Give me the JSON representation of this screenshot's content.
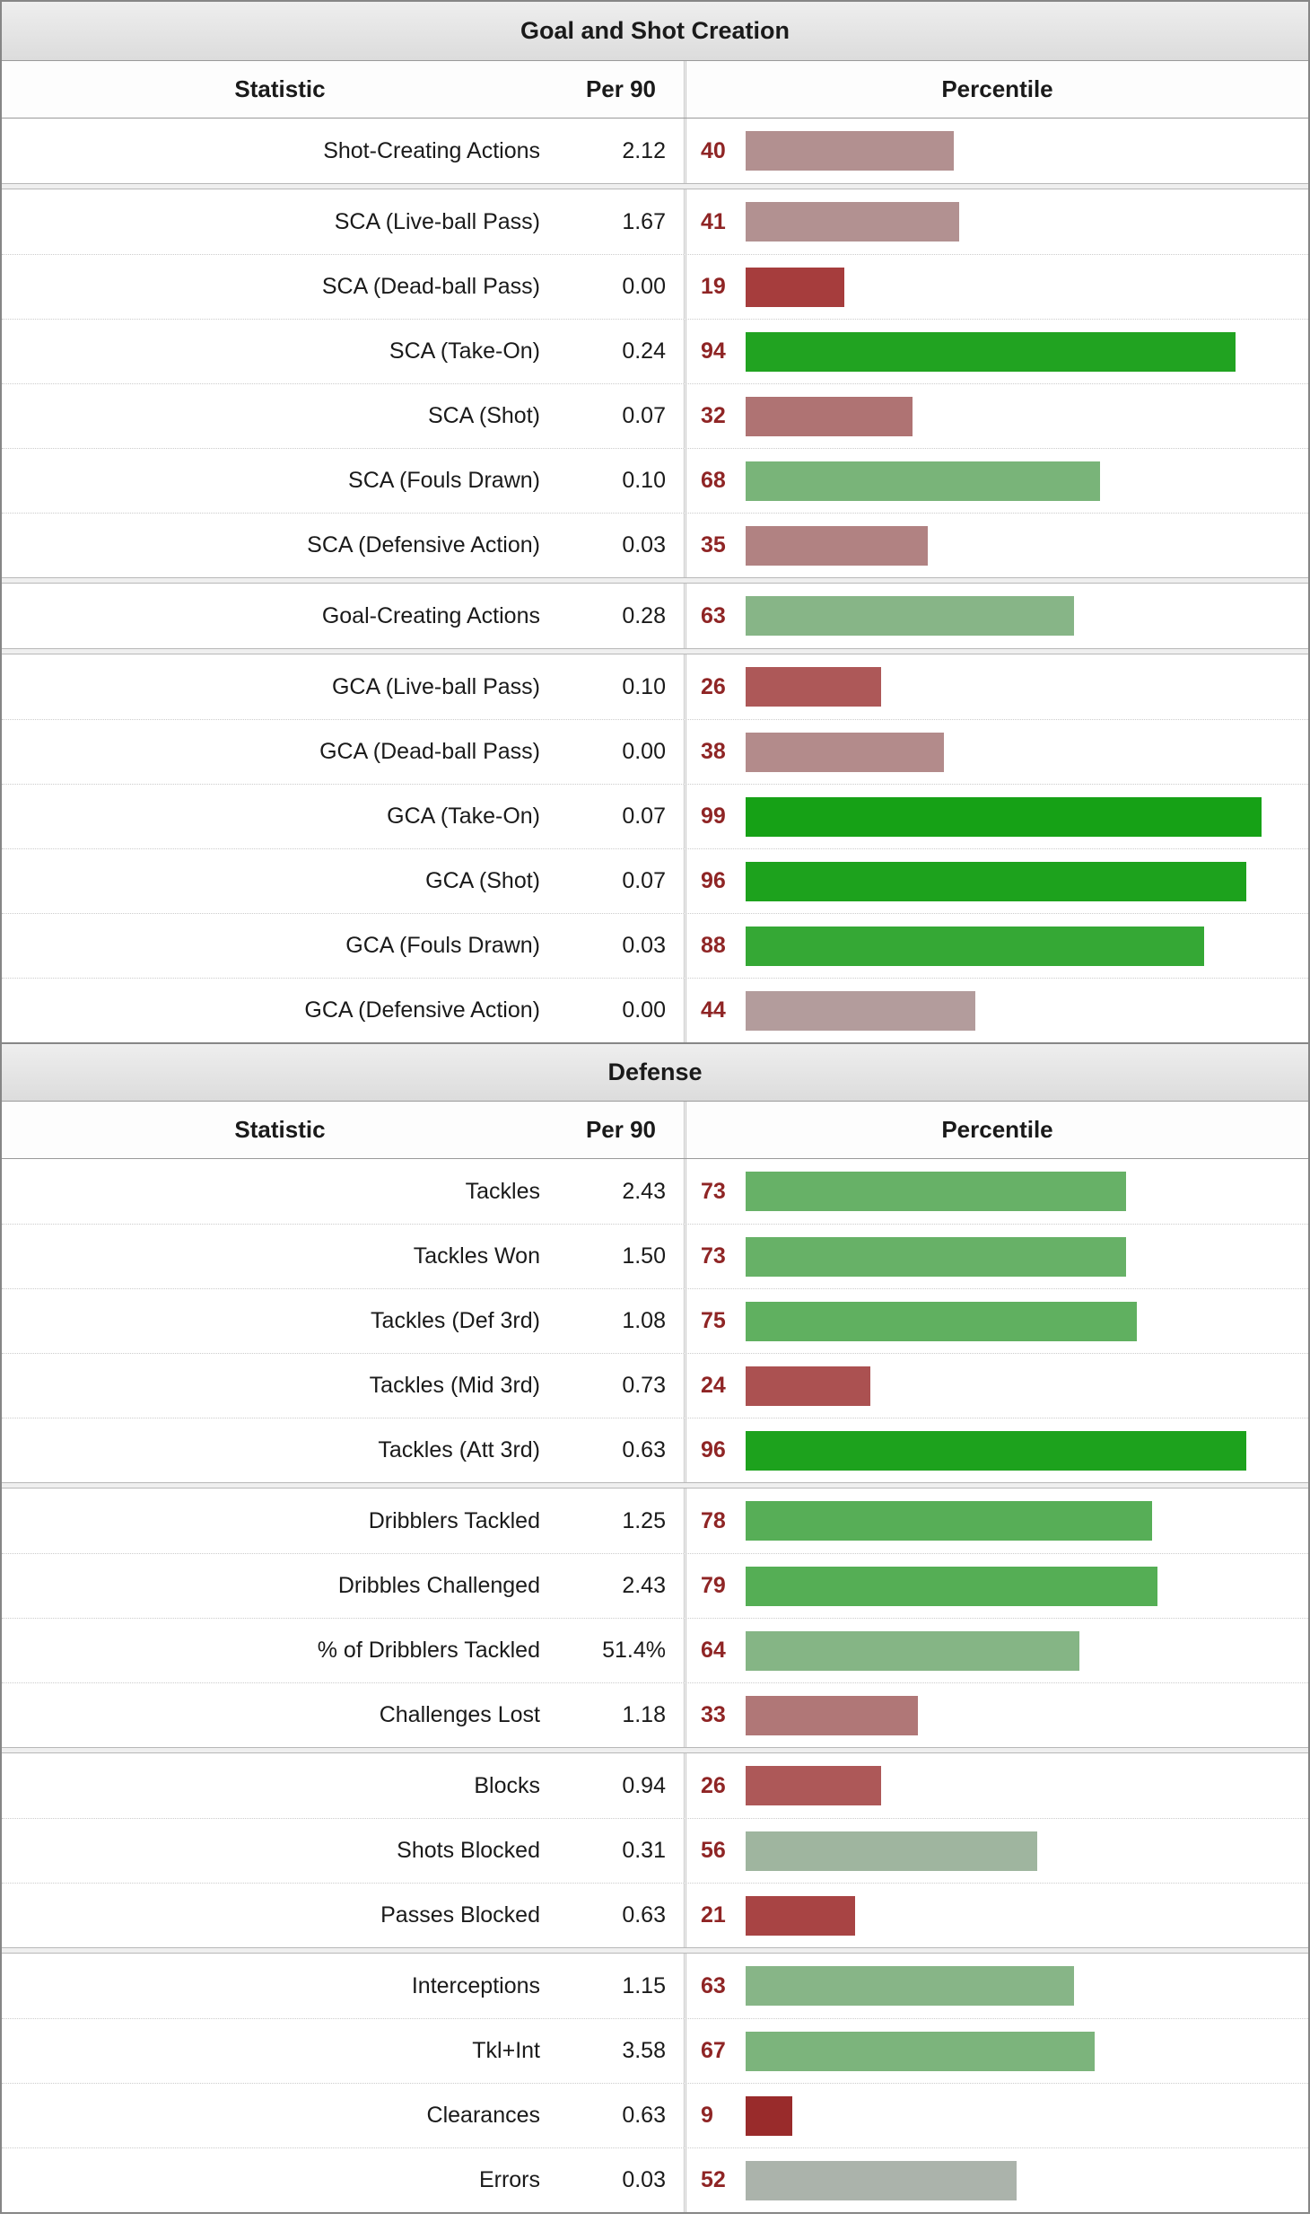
{
  "colors": {
    "percentile_number": "#8f2525",
    "title_bar_bg": "#e4e4e4",
    "board_border": "#868686"
  },
  "sections": [
    {
      "title": "Goal and Shot Creation",
      "columns": {
        "stat": "Statistic",
        "per90": "Per 90",
        "percentile": "Percentile"
      },
      "groups": [
        {
          "rows": [
            {
              "stat": "Shot-Creating Actions",
              "per90": "2.12",
              "percentile": 40,
              "color": "#b29090"
            }
          ]
        },
        {
          "rows": [
            {
              "stat": "SCA (Live-ball Pass)",
              "per90": "1.67",
              "percentile": 41,
              "color": "#b29191"
            },
            {
              "stat": "SCA (Dead-ball Pass)",
              "per90": "0.00",
              "percentile": 19,
              "color": "#a63d3d"
            },
            {
              "stat": "SCA (Take-On)",
              "per90": "0.24",
              "percentile": 94,
              "color": "#21a321"
            },
            {
              "stat": "SCA (Shot)",
              "per90": "0.07",
              "percentile": 32,
              "color": "#af7373"
            },
            {
              "stat": "SCA (Fouls Drawn)",
              "per90": "0.10",
              "percentile": 68,
              "color": "#79b479"
            },
            {
              "stat": "SCA (Defensive Action)",
              "per90": "0.03",
              "percentile": 35,
              "color": "#b18282"
            }
          ]
        },
        {
          "rows": [
            {
              "stat": "Goal-Creating Actions",
              "per90": "0.28",
              "percentile": 63,
              "color": "#87b587"
            }
          ]
        },
        {
          "rows": [
            {
              "stat": "GCA (Live-ball Pass)",
              "per90": "0.10",
              "percentile": 26,
              "color": "#ad5858"
            },
            {
              "stat": "GCA (Dead-ball Pass)",
              "per90": "0.00",
              "percentile": 38,
              "color": "#b38b8b"
            },
            {
              "stat": "GCA (Take-On)",
              "per90": "0.07",
              "percentile": 99,
              "color": "#16a116"
            },
            {
              "stat": "GCA (Shot)",
              "per90": "0.07",
              "percentile": 96,
              "color": "#1da21d"
            },
            {
              "stat": "GCA (Fouls Drawn)",
              "per90": "0.03",
              "percentile": 88,
              "color": "#35a835"
            },
            {
              "stat": "GCA (Defensive Action)",
              "per90": "0.00",
              "percentile": 44,
              "color": "#b39c9c"
            }
          ]
        }
      ]
    },
    {
      "title": "Defense",
      "columns": {
        "stat": "Statistic",
        "per90": "Per 90",
        "percentile": "Percentile"
      },
      "groups": [
        {
          "rows": [
            {
              "stat": "Tackles",
              "per90": "2.43",
              "percentile": 73,
              "color": "#67b167"
            },
            {
              "stat": "Tackles Won",
              "per90": "1.50",
              "percentile": 73,
              "color": "#67b167"
            },
            {
              "stat": "Tackles (Def 3rd)",
              "per90": "1.08",
              "percentile": 75,
              "color": "#60b060"
            },
            {
              "stat": "Tackles (Mid 3rd)",
              "per90": "0.73",
              "percentile": 24,
              "color": "#ab5151"
            },
            {
              "stat": "Tackles (Att 3rd)",
              "per90": "0.63",
              "percentile": 96,
              "color": "#1da21d"
            }
          ]
        },
        {
          "rows": [
            {
              "stat": "Dribblers Tackled",
              "per90": "1.25",
              "percentile": 78,
              "color": "#57ae57"
            },
            {
              "stat": "Dribbles Challenged",
              "per90": "2.43",
              "percentile": 79,
              "color": "#55ae55"
            },
            {
              "stat": "% of Dribblers Tackled",
              "per90": "51.4%",
              "percentile": 64,
              "color": "#85b585"
            },
            {
              "stat": "Challenges Lost",
              "per90": "1.18",
              "percentile": 33,
              "color": "#b07777"
            }
          ]
        },
        {
          "rows": [
            {
              "stat": "Blocks",
              "per90": "0.94",
              "percentile": 26,
              "color": "#ad5858"
            },
            {
              "stat": "Shots Blocked",
              "per90": "0.31",
              "percentile": 56,
              "color": "#9fb59f"
            },
            {
              "stat": "Passes Blocked",
              "per90": "0.63",
              "percentile": 21,
              "color": "#a84444"
            }
          ]
        },
        {
          "rows": [
            {
              "stat": "Interceptions",
              "per90": "1.15",
              "percentile": 63,
              "color": "#87b587"
            },
            {
              "stat": "Tkl+Int",
              "per90": "3.58",
              "percentile": 67,
              "color": "#7cb47c"
            },
            {
              "stat": "Clearances",
              "per90": "0.63",
              "percentile": 9,
              "color": "#992b2b"
            },
            {
              "stat": "Errors",
              "per90": "0.03",
              "percentile": 52,
              "color": "#abb3ab"
            }
          ]
        }
      ]
    }
  ],
  "chart_data": [
    {
      "type": "bar",
      "title": "Goal and Shot Creation",
      "categories": [
        "Shot-Creating Actions",
        "SCA (Live-ball Pass)",
        "SCA (Dead-ball Pass)",
        "SCA (Take-On)",
        "SCA (Shot)",
        "SCA (Fouls Drawn)",
        "SCA (Defensive Action)",
        "Goal-Creating Actions",
        "GCA (Live-ball Pass)",
        "GCA (Dead-ball Pass)",
        "GCA (Take-On)",
        "GCA (Shot)",
        "GCA (Fouls Drawn)",
        "GCA (Defensive Action)"
      ],
      "series": [
        {
          "name": "Per 90",
          "values": [
            2.12,
            1.67,
            0.0,
            0.24,
            0.07,
            0.1,
            0.03,
            0.28,
            0.1,
            0.0,
            0.07,
            0.07,
            0.03,
            0.0
          ]
        },
        {
          "name": "Percentile",
          "values": [
            40,
            41,
            19,
            94,
            32,
            68,
            35,
            63,
            26,
            38,
            99,
            96,
            88,
            44
          ]
        }
      ],
      "xlabel": "",
      "ylabel": "Percentile",
      "ylim": [
        0,
        100
      ],
      "orientation": "horizontal",
      "grid": false,
      "legend_position": "none"
    },
    {
      "type": "bar",
      "title": "Defense",
      "categories": [
        "Tackles",
        "Tackles Won",
        "Tackles (Def 3rd)",
        "Tackles (Mid 3rd)",
        "Tackles (Att 3rd)",
        "Dribblers Tackled",
        "Dribbles Challenged",
        "% of Dribblers Tackled",
        "Challenges Lost",
        "Blocks",
        "Shots Blocked",
        "Passes Blocked",
        "Interceptions",
        "Tkl+Int",
        "Clearances",
        "Errors"
      ],
      "series": [
        {
          "name": "Per 90",
          "values": [
            2.43,
            1.5,
            1.08,
            0.73,
            0.63,
            1.25,
            2.43,
            "51.4%",
            1.18,
            0.94,
            0.31,
            0.63,
            1.15,
            3.58,
            0.63,
            0.03
          ]
        },
        {
          "name": "Percentile",
          "values": [
            73,
            73,
            75,
            24,
            96,
            78,
            79,
            64,
            33,
            26,
            56,
            21,
            63,
            67,
            9,
            52
          ]
        }
      ],
      "xlabel": "",
      "ylabel": "Percentile",
      "ylim": [
        0,
        100
      ],
      "orientation": "horizontal",
      "grid": false,
      "legend_position": "none"
    }
  ]
}
